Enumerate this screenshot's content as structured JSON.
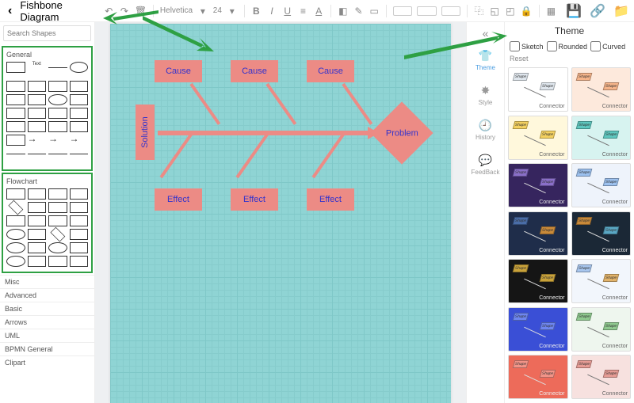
{
  "title": "Fishbone Diagram",
  "search_placeholder": "Search Shapes",
  "toolbar": {
    "font": "Helvetica",
    "font_size": "24"
  },
  "shape_sections": {
    "general": "General",
    "flowchart": "Flowchart"
  },
  "categories": [
    "Misc",
    "Advanced",
    "Basic",
    "Arrows",
    "UML",
    "BPMN General",
    "Clipart"
  ],
  "canvas": {
    "background_color": "#8fd4d4",
    "grid_color": "#7fc8c8",
    "node_color": "#ec8b85",
    "text_color": "#3333cc",
    "nodes": {
      "cause1": "Cause",
      "cause2": "Cause",
      "cause3": "Cause",
      "effect1": "Effect",
      "effect2": "Effect",
      "effect3": "Effect",
      "solution": "Solution",
      "problem": "Problem"
    }
  },
  "rail": {
    "theme": "Theme",
    "style": "Style",
    "history": "History",
    "feedback": "FeedBack"
  },
  "theme_panel": {
    "title": "Theme",
    "opts": {
      "sketch": "Sketch",
      "rounded": "Rounded",
      "curved": "Curved",
      "reset": "Reset"
    },
    "card_shape_label": "Shape",
    "card_connector_label": "Connector",
    "cards": [
      {
        "bg": "#ffffff",
        "s1": "#dfe6ed",
        "s2": "#dfe6ed",
        "light": true
      },
      {
        "bg": "#fde9dc",
        "s1": "#f5b48a",
        "s2": "#f5b48a",
        "light": true
      },
      {
        "bg": "#fff8dc",
        "s1": "#f4d160",
        "s2": "#f4d160",
        "light": true
      },
      {
        "bg": "#d7f3f0",
        "s1": "#5ec7bf",
        "s2": "#5ec7bf",
        "light": true
      },
      {
        "bg": "#36255e",
        "s1": "#8a6fc9",
        "s2": "#8a6fc9",
        "light": false
      },
      {
        "bg": "#eef3fb",
        "s1": "#9cc1ef",
        "s2": "#9cc1ef",
        "light": true
      },
      {
        "bg": "#1f2d4a",
        "s1": "#4a6da8",
        "s2": "#c98a3a",
        "light": false
      },
      {
        "bg": "#1b2836",
        "s1": "#c98a3a",
        "s2": "#5aa7c4",
        "light": false
      },
      {
        "bg": "#151515",
        "s1": "#c9a23a",
        "s2": "#c9a23a",
        "light": false
      },
      {
        "bg": "#f2f6fc",
        "s1": "#a8c6ee",
        "s2": "#e2b36a",
        "light": true
      },
      {
        "bg": "#3a4fd6",
        "s1": "#6e86f0",
        "s2": "#6e86f0",
        "light": false
      },
      {
        "bg": "#eef6ee",
        "s1": "#8fc98f",
        "s2": "#8fc98f",
        "light": true
      },
      {
        "bg": "#ed6b5a",
        "s1": "#f29488",
        "s2": "#f29488",
        "light": false
      },
      {
        "bg": "#f7e1df",
        "s1": "#e79c95",
        "s2": "#e79c95",
        "light": true
      }
    ]
  },
  "callout_color": "#2ea043"
}
